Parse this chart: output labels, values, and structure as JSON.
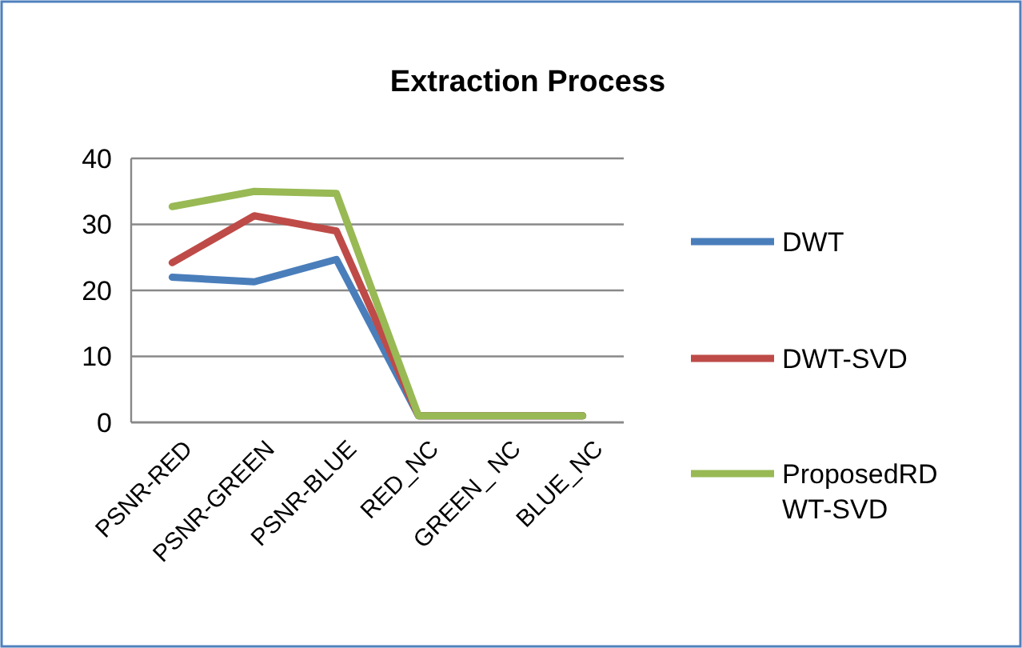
{
  "chart_data": {
    "type": "line",
    "title": "Extraction Process",
    "categories": [
      "PSNR-RED",
      "PSNR-GREEN",
      "PSNR-BLUE",
      "RED_NC",
      "GREEN_ NC",
      "BLUE_NC"
    ],
    "series": [
      {
        "name": "DWT",
        "color": "#4a7ebb",
        "values": [
          22,
          21.3,
          24.7,
          1,
          1,
          1
        ]
      },
      {
        "name": "DWT-SVD",
        "color": "#be4b48",
        "values": [
          24.2,
          31.3,
          29,
          1,
          1,
          1
        ]
      },
      {
        "name": "ProposedRDWT-SVD",
        "color": "#98b954",
        "values": [
          32.7,
          35,
          34.7,
          1,
          1,
          1
        ]
      }
    ],
    "ylim": [
      0,
      40
    ],
    "yticks": [
      0,
      10,
      20,
      30,
      40
    ],
    "grid": "y",
    "legend": "right",
    "marker": "none",
    "line_style": "solid"
  }
}
